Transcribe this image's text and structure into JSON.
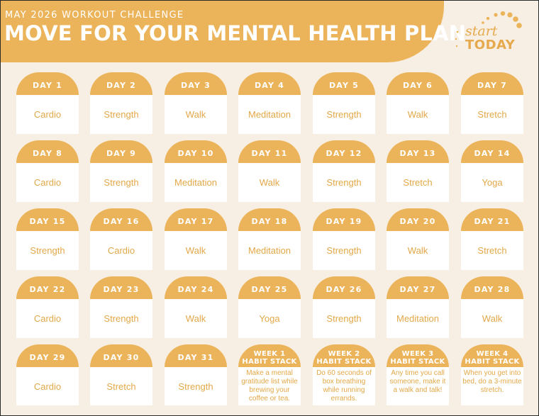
{
  "header": {
    "subtitle": "MAY 2026 WORKOUT CHALLENGE",
    "title": "MOVE FOR YOUR MENTAL HEALTH PLAN"
  },
  "logo": {
    "line1": "start",
    "line2": "TODAY",
    "icon": "sunrise-dots-icon"
  },
  "colors": {
    "accent": "#ecb45a",
    "background": "#f7efe3",
    "text": "#e2a848",
    "white": "#ffffff"
  },
  "days": [
    {
      "label": "DAY 1",
      "activity": "Cardio"
    },
    {
      "label": "DAY 2",
      "activity": "Strength"
    },
    {
      "label": "DAY 3",
      "activity": "Walk"
    },
    {
      "label": "DAY 4",
      "activity": "Meditation"
    },
    {
      "label": "DAY 5",
      "activity": "Strength"
    },
    {
      "label": "DAY 6",
      "activity": "Walk"
    },
    {
      "label": "DAY 7",
      "activity": "Stretch"
    },
    {
      "label": "DAY 8",
      "activity": "Cardio"
    },
    {
      "label": "DAY 9",
      "activity": "Strength"
    },
    {
      "label": "DAY 10",
      "activity": "Meditation"
    },
    {
      "label": "DAY 11",
      "activity": "Walk"
    },
    {
      "label": "DAY 12",
      "activity": "Strength"
    },
    {
      "label": "DAY 13",
      "activity": "Stretch"
    },
    {
      "label": "DAY 14",
      "activity": "Yoga"
    },
    {
      "label": "DAY 15",
      "activity": "Strength"
    },
    {
      "label": "DAY 16",
      "activity": "Cardio"
    },
    {
      "label": "DAY 17",
      "activity": "Walk"
    },
    {
      "label": "DAY 18",
      "activity": "Meditation"
    },
    {
      "label": "DAY 19",
      "activity": "Strength"
    },
    {
      "label": "DAY 20",
      "activity": "Walk"
    },
    {
      "label": "DAY 21",
      "activity": "Stretch"
    },
    {
      "label": "DAY 22",
      "activity": "Cardio"
    },
    {
      "label": "DAY 23",
      "activity": "Strength"
    },
    {
      "label": "DAY 24",
      "activity": "Walk"
    },
    {
      "label": "DAY 25",
      "activity": "Yoga"
    },
    {
      "label": "DAY 26",
      "activity": "Strength"
    },
    {
      "label": "DAY 27",
      "activity": "Meditation"
    },
    {
      "label": "DAY 28",
      "activity": "Walk"
    },
    {
      "label": "DAY 29",
      "activity": "Cardio"
    },
    {
      "label": "DAY 30",
      "activity": "Stretch"
    },
    {
      "label": "DAY 31",
      "activity": "Strength"
    }
  ],
  "habit_stacks": [
    {
      "week": "WEEK 1",
      "label": "HABIT STACK",
      "text": "Make a mental gratitude list while brewing your coffee or tea."
    },
    {
      "week": "WEEK 2",
      "label": "HABIT STACK",
      "text": "Do 60 seconds of box breathing while running errands."
    },
    {
      "week": "WEEK 3",
      "label": "HABIT STACK",
      "text": "Any time you call someone, make it a walk and talk!"
    },
    {
      "week": "WEEK 4",
      "label": "HABIT STACK",
      "text": "When you get into bed, do a 3-minute stretch."
    }
  ]
}
